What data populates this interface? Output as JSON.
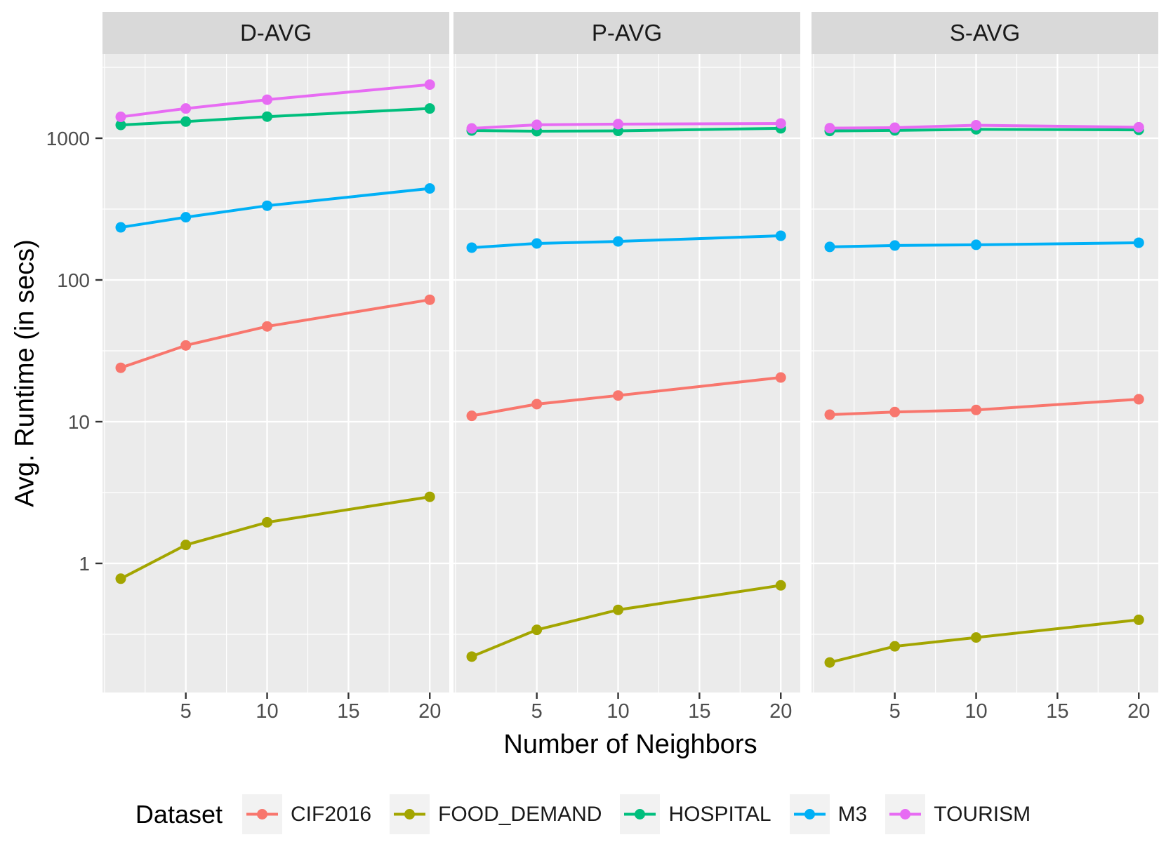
{
  "figure": {
    "y_axis_title": "Avg. Runtime (in secs)",
    "x_axis_title": "Number of Neighbors",
    "legend_title": "Dataset"
  },
  "chart_data": {
    "type": "line",
    "facets": [
      "D-AVG",
      "P-AVG",
      "S-AVG"
    ],
    "x": [
      1,
      5,
      10,
      20
    ],
    "x_tick_labels": [
      "5",
      "10",
      "15",
      "20"
    ],
    "x_ticks": [
      5,
      10,
      15,
      20
    ],
    "y_scale": "log10",
    "y_ticks": [
      1000,
      100,
      10,
      1
    ],
    "y_tick_labels": [
      "1000",
      "100",
      "10",
      "1"
    ],
    "xlabel": "Number of Neighbors",
    "ylabel": "Avg. Runtime (in secs)",
    "legend_title": "Dataset",
    "legend_position": "bottom",
    "grid": "white-on-gray",
    "series": [
      {
        "name": "CIF2016",
        "color": "#F8766D",
        "values": {
          "D-AVG": [
            24,
            34.5,
            47,
            72.5
          ],
          "P-AVG": [
            11,
            13.3,
            15.3,
            20.5
          ],
          "S-AVG": [
            11.2,
            11.7,
            12.1,
            14.4
          ]
        }
      },
      {
        "name": "FOOD_DEMAND",
        "color": "#A3A500",
        "values": {
          "D-AVG": [
            0.78,
            1.35,
            1.95,
            2.95
          ],
          "P-AVG": [
            0.22,
            0.34,
            0.47,
            0.7
          ],
          "S-AVG": [
            0.2,
            0.26,
            0.3,
            0.4
          ]
        }
      },
      {
        "name": "HOSPITAL",
        "color": "#00BF7D",
        "values": {
          "D-AVG": [
            1240,
            1310,
            1420,
            1620
          ],
          "P-AVG": [
            1133,
            1121,
            1127,
            1174
          ],
          "S-AVG": [
            1125,
            1135,
            1155,
            1145
          ]
        }
      },
      {
        "name": "M3",
        "color": "#00B0F6",
        "values": {
          "D-AVG": [
            235,
            277,
            334,
            442
          ],
          "P-AVG": [
            169,
            181,
            187,
            205
          ],
          "S-AVG": [
            171,
            175,
            177,
            183
          ]
        }
      },
      {
        "name": "TOURISM",
        "color": "#E76BF3",
        "values": {
          "D-AVG": [
            1415,
            1620,
            1870,
            2390
          ],
          "P-AVG": [
            1173,
            1243,
            1257,
            1271
          ],
          "S-AVG": [
            1178,
            1186,
            1235,
            1195
          ]
        }
      }
    ]
  },
  "colors": {
    "panel_background": "#EBEBEB",
    "strip_background": "#D9D9D9",
    "gridline": "#FFFFFF",
    "tick_mark": "#333333",
    "tick_label": "#4D4D4D",
    "text": "#000000"
  }
}
